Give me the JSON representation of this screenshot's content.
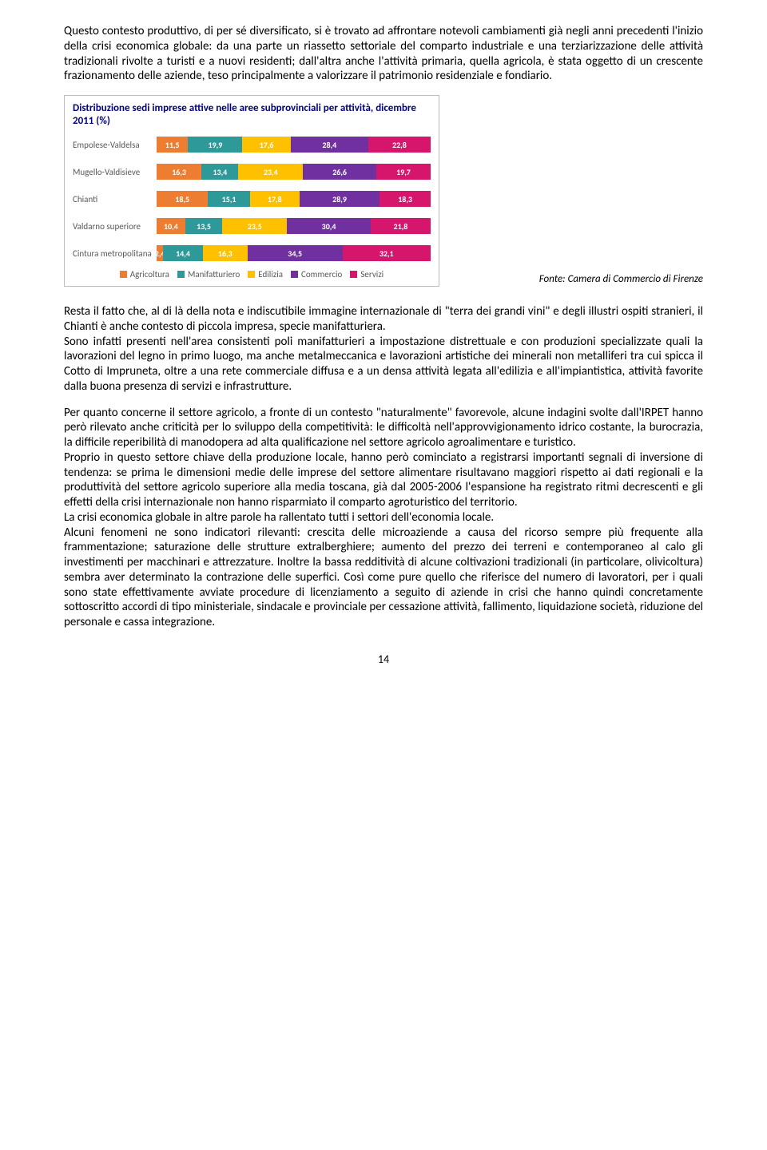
{
  "para1": "Questo contesto produttivo, di per sé diversificato, si è trovato ad affrontare notevoli cambiamenti già negli anni precedenti l'inizio della crisi economica globale: da una parte un riassetto settoriale del comparto industriale e una terziarizzazione delle attività tradizionali rivolte a turisti e a nuovi residenti; dall'altra anche l'attività primaria, quella agricola, è stata oggetto di un crescente frazionamento delle aziende, teso principalmente a valorizzare il patrimonio residenziale e fondiario.",
  "chart": {
    "title": "Distribuzione sedi imprese attive nelle aree subprovinciali per attività, dicembre 2011 (%)",
    "legend": [
      "Agricoltura",
      "Manifatturiero",
      "Edilizia",
      "Commercio",
      "Servizi"
    ],
    "colors": [
      "#ed7d31",
      "#2e9999",
      "#ffc000",
      "#7030a0",
      "#d6156c"
    ],
    "rows": [
      {
        "label": "Empolese-Valdelsa",
        "values": [
          11.5,
          19.9,
          17.6,
          28.4,
          22.8
        ]
      },
      {
        "label": "Mugello-Valdisieve",
        "values": [
          16.3,
          13.4,
          23.4,
          26.6,
          19.7
        ]
      },
      {
        "label": "Chianti",
        "values": [
          18.5,
          15.1,
          17.8,
          28.9,
          18.3
        ]
      },
      {
        "label": "Valdarno superiore",
        "values": [
          10.4,
          13.5,
          23.5,
          30.4,
          21.8
        ]
      },
      {
        "label": "Cintura metropolitana",
        "values": [
          2.4,
          14.4,
          16.3,
          34.5,
          32.1
        ]
      }
    ]
  },
  "caption": "Fonte: Camera di Commercio di Firenze",
  "para2": "Resta il fatto che, al di là della nota e indiscutibile immagine internazionale di \"terra dei grandi vini\" e degli illustri ospiti stranieri, il Chianti è anche contesto di piccola impresa, specie manifatturiera.",
  "para3": "Sono infatti presenti nell'area consistenti poli manifatturieri a impostazione distrettuale e con produzioni specializzate quali la lavorazioni del legno in primo luogo, ma anche metalmeccanica e lavorazioni artistiche dei minerali non metalliferi tra cui spicca il Cotto di Impruneta, oltre a una rete commerciale diffusa e a un densa attività legata all'edilizia e all'impiantistica, attività favorite dalla buona presenza di servizi e infrastrutture.",
  "para4": "Per quanto concerne il settore agricolo, a fronte di un contesto \"naturalmente\" favorevole, alcune indagini svolte dall'IRPET hanno però rilevato anche criticità per lo sviluppo della competitività: le difficoltà nell'approvvigionamento idrico costante, la burocrazia, la difficile reperibilità di manodopera ad alta qualificazione nel settore agricolo agroalimentare e turistico.",
  "para5": "Proprio in questo settore chiave della produzione locale, hanno però cominciato a registrarsi importanti segnali di inversione di tendenza: se prima le dimensioni medie delle imprese del settore alimentare risultavano maggiori rispetto ai dati regionali e la produttività del settore agricolo superiore alla media toscana, già dal 2005-2006 l'espansione ha registrato ritmi decrescenti e gli effetti della crisi internazionale non hanno risparmiato il comparto agroturistico del territorio.",
  "para6": "La crisi economica globale in altre parole ha rallentato tutti i settori dell'economia locale.",
  "para7": "Alcuni fenomeni ne sono indicatori rilevanti: crescita delle microaziende a causa del ricorso sempre più frequente alla frammentazione; saturazione delle strutture extralberghiere; aumento del prezzo dei terreni e contemporaneo al calo gli investimenti per macchinari e attrezzature. Inoltre la bassa redditività di alcune coltivazioni tradizionali (in particolare, olivicoltura) sembra aver determinato la contrazione delle superfici. Così come pure quello che riferisce del numero di lavoratori, per i quali sono state effettivamente avviate procedure di licenziamento a seguito di aziende in crisi che hanno quindi concretamente sottoscritto accordi di tipo ministeriale, sindacale e provinciale per cessazione attività, fallimento, liquidazione società, riduzione del personale e cassa integrazione.",
  "pageNumber": "14"
}
